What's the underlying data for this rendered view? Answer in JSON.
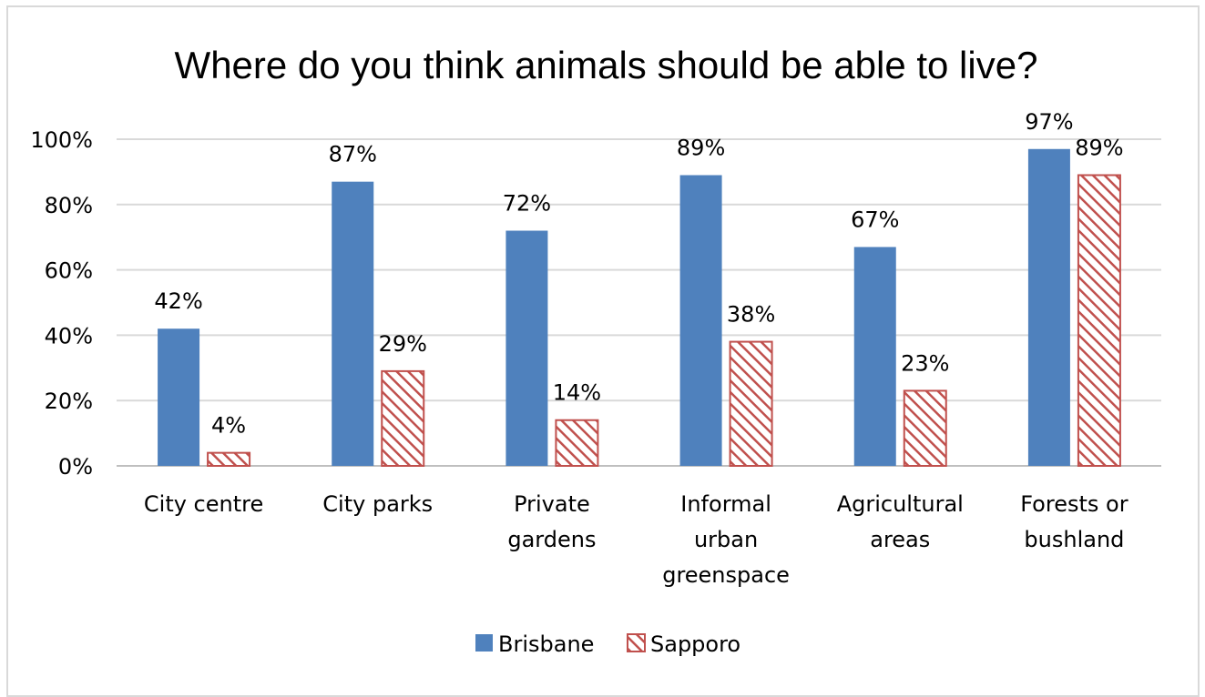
{
  "chart_data": {
    "type": "bar",
    "title": "Where do you think animals should be able to live?",
    "categories": [
      [
        "City centre"
      ],
      [
        "City parks"
      ],
      [
        "Private",
        "gardens"
      ],
      [
        "Informal",
        "urban",
        "greenspace"
      ],
      [
        "Agricultural",
        "areas"
      ],
      [
        "Forests or",
        "bushland"
      ]
    ],
    "series": [
      {
        "name": "Brisbane",
        "values": [
          42,
          87,
          72,
          89,
          67,
          97
        ],
        "labels": [
          "42%",
          "87%",
          "72%",
          "89%",
          "67%",
          "97%"
        ],
        "color": "#4f81bd",
        "fill": "solid"
      },
      {
        "name": "Sapporo",
        "values": [
          4,
          29,
          14,
          38,
          23,
          89
        ],
        "labels": [
          "4%",
          "29%",
          "14%",
          "38%",
          "23%",
          "89%"
        ],
        "color": "#c0504d",
        "fill": "hatched"
      }
    ],
    "y_ticks": [
      "0%",
      "20%",
      "40%",
      "60%",
      "80%",
      "100%"
    ],
    "ylim": [
      0,
      100
    ],
    "grid": true,
    "legend_position": "bottom"
  }
}
